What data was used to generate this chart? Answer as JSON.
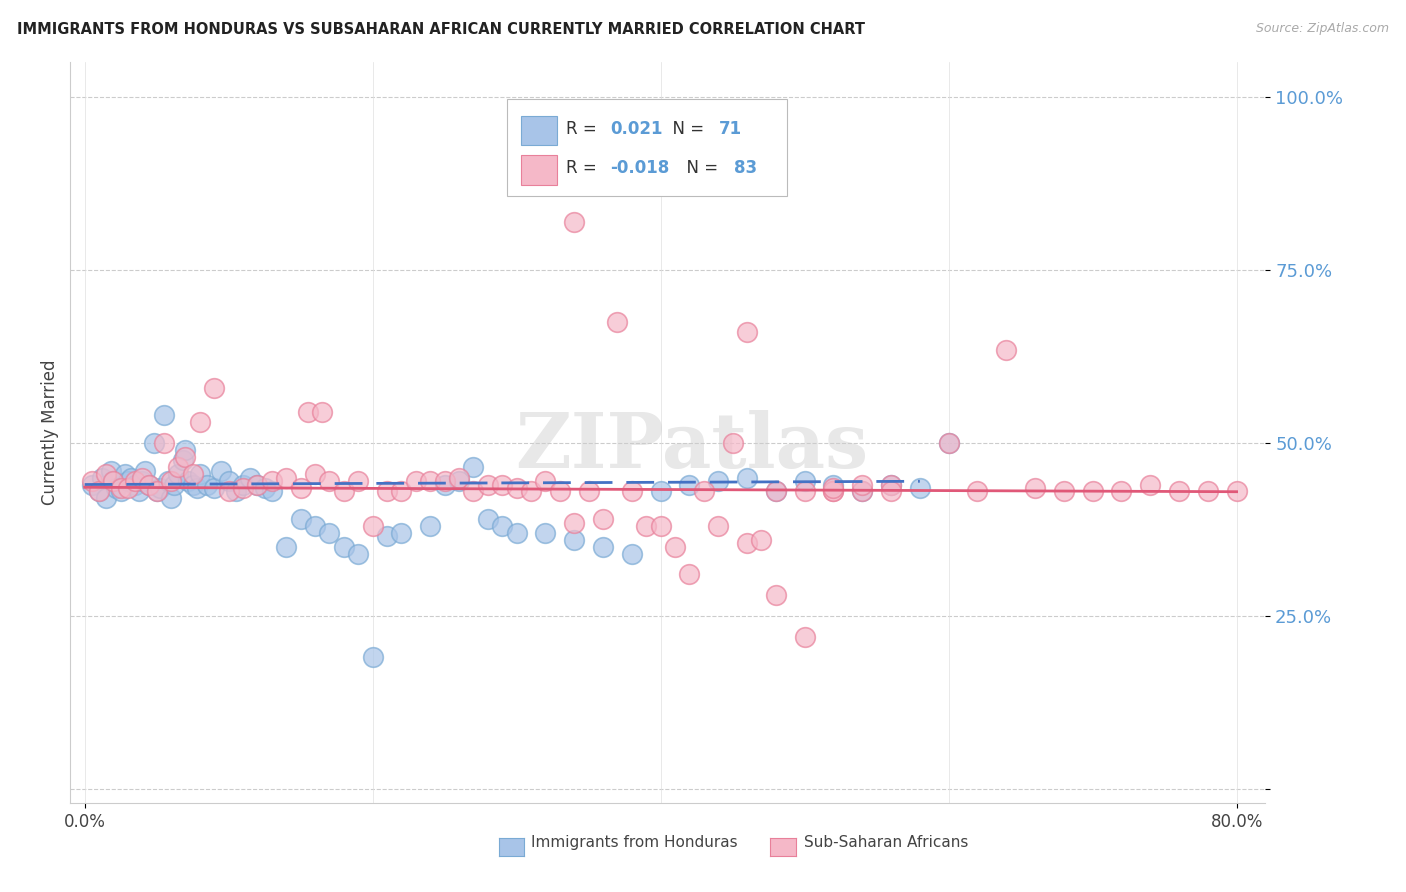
{
  "title": "IMMIGRANTS FROM HONDURAS VS SUBSAHARAN AFRICAN CURRENTLY MARRIED CORRELATION CHART",
  "source": "Source: ZipAtlas.com",
  "ylabel": "Currently Married",
  "blue_color": "#a8c4e8",
  "pink_color": "#f5b8c8",
  "blue_edge_color": "#7aaad4",
  "pink_edge_color": "#e8809a",
  "blue_line_color": "#4472C4",
  "pink_line_color": "#E05878",
  "watermark": "ZIPatlas",
  "ytick_color": "#5b9bd5",
  "blue_R_text": "0.021",
  "blue_N_text": "71",
  "pink_R_text": "-0.018",
  "pink_N_text": "83",
  "blue_scatter_x": [
    0.005,
    0.01,
    0.012,
    0.015,
    0.018,
    0.02,
    0.022,
    0.025,
    0.028,
    0.03,
    0.032,
    0.035,
    0.038,
    0.04,
    0.042,
    0.045,
    0.048,
    0.05,
    0.052,
    0.055,
    0.058,
    0.06,
    0.062,
    0.065,
    0.068,
    0.07,
    0.072,
    0.075,
    0.078,
    0.08,
    0.085,
    0.09,
    0.095,
    0.1,
    0.105,
    0.11,
    0.115,
    0.12,
    0.125,
    0.13,
    0.14,
    0.15,
    0.16,
    0.17,
    0.18,
    0.19,
    0.2,
    0.21,
    0.22,
    0.24,
    0.25,
    0.26,
    0.27,
    0.28,
    0.29,
    0.3,
    0.32,
    0.34,
    0.36,
    0.38,
    0.4,
    0.42,
    0.44,
    0.46,
    0.48,
    0.5,
    0.52,
    0.54,
    0.56,
    0.58,
    0.6
  ],
  "blue_scatter_y": [
    0.44,
    0.43,
    0.45,
    0.42,
    0.46,
    0.445,
    0.435,
    0.43,
    0.455,
    0.445,
    0.45,
    0.44,
    0.43,
    0.445,
    0.46,
    0.44,
    0.5,
    0.43,
    0.435,
    0.54,
    0.445,
    0.42,
    0.44,
    0.455,
    0.475,
    0.49,
    0.445,
    0.44,
    0.435,
    0.455,
    0.44,
    0.435,
    0.46,
    0.445,
    0.43,
    0.44,
    0.45,
    0.44,
    0.435,
    0.43,
    0.35,
    0.39,
    0.38,
    0.37,
    0.35,
    0.34,
    0.19,
    0.365,
    0.37,
    0.38,
    0.44,
    0.445,
    0.465,
    0.39,
    0.38,
    0.37,
    0.37,
    0.36,
    0.35,
    0.34,
    0.43,
    0.44,
    0.445,
    0.45,
    0.43,
    0.445,
    0.44,
    0.43,
    0.44,
    0.435,
    0.5
  ],
  "pink_scatter_x": [
    0.005,
    0.01,
    0.015,
    0.02,
    0.025,
    0.03,
    0.035,
    0.04,
    0.045,
    0.05,
    0.055,
    0.06,
    0.065,
    0.07,
    0.075,
    0.08,
    0.09,
    0.1,
    0.11,
    0.12,
    0.13,
    0.14,
    0.15,
    0.155,
    0.16,
    0.165,
    0.17,
    0.18,
    0.19,
    0.2,
    0.21,
    0.22,
    0.23,
    0.24,
    0.25,
    0.26,
    0.27,
    0.28,
    0.29,
    0.3,
    0.31,
    0.32,
    0.33,
    0.34,
    0.35,
    0.36,
    0.37,
    0.38,
    0.39,
    0.4,
    0.41,
    0.42,
    0.43,
    0.44,
    0.34,
    0.46,
    0.47,
    0.48,
    0.5,
    0.52,
    0.54,
    0.56,
    0.6,
    0.62,
    0.64,
    0.66,
    0.68,
    0.7,
    0.72,
    0.74,
    0.76,
    0.78,
    0.8,
    0.35,
    0.42,
    0.46,
    0.48,
    0.5,
    0.52,
    0.45,
    0.52,
    0.54,
    0.56
  ],
  "pink_scatter_y": [
    0.445,
    0.43,
    0.455,
    0.445,
    0.435,
    0.435,
    0.445,
    0.45,
    0.44,
    0.43,
    0.5,
    0.445,
    0.465,
    0.48,
    0.455,
    0.53,
    0.58,
    0.43,
    0.435,
    0.44,
    0.445,
    0.45,
    0.435,
    0.545,
    0.455,
    0.545,
    0.445,
    0.43,
    0.445,
    0.38,
    0.43,
    0.43,
    0.445,
    0.445,
    0.445,
    0.45,
    0.43,
    0.44,
    0.44,
    0.435,
    0.43,
    0.445,
    0.43,
    0.385,
    0.43,
    0.39,
    0.675,
    0.43,
    0.38,
    0.38,
    0.35,
    0.31,
    0.43,
    0.38,
    0.82,
    0.355,
    0.36,
    0.28,
    0.22,
    0.43,
    0.43,
    0.44,
    0.5,
    0.43,
    0.635,
    0.435,
    0.43,
    0.43,
    0.43,
    0.44,
    0.43,
    0.43,
    0.43,
    0.885,
    0.88,
    0.66,
    0.43,
    0.43,
    0.43,
    0.5,
    0.435,
    0.44,
    0.43
  ]
}
